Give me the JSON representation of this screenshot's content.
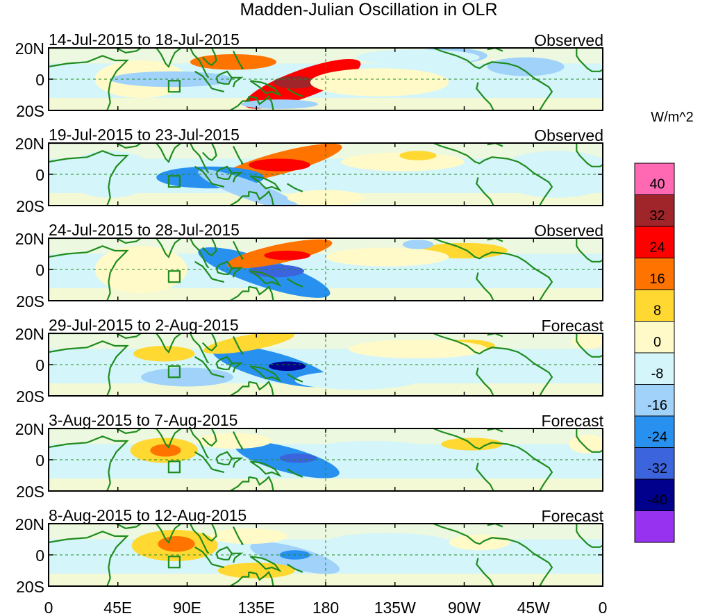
{
  "chart_data": {
    "type": "heatmap",
    "title": "Madden-Julian Oscillation in OLR",
    "units": "W/m^2",
    "lat_tick_labels": [
      "20N",
      "0",
      "20S"
    ],
    "lon_tick_labels": [
      "0",
      "45E",
      "90E",
      "135E",
      "180",
      "135W",
      "90W",
      "45W",
      "0"
    ],
    "lon_range": [
      0,
      360
    ],
    "lat_range": [
      -20,
      20
    ],
    "colorbar": {
      "levels": [
        40,
        32,
        24,
        16,
        8,
        0,
        -8,
        -16,
        -24,
        -32,
        -40
      ],
      "colors": [
        "#ff69b4",
        "#a0252a",
        "#ff0000",
        "#ff7300",
        "#ffd832",
        "#fffac8",
        "#d4f5fa",
        "#a0d2fa",
        "#2891f0",
        "#3c64dc",
        "#00008c",
        "#9632f0"
      ]
    },
    "panels": [
      {
        "period": "14-Jul-2015 to 18-Jul-2015",
        "kind": "Observed",
        "anomalies": [
          {
            "lon": 165,
            "lat": -3,
            "rlon": 40,
            "rlat": 9,
            "tilt": -20,
            "value": 28
          },
          {
            "lon": 120,
            "lat": 11,
            "rlon": 28,
            "rlat": 5,
            "value": 24
          },
          {
            "lon": 160,
            "lat": -2,
            "rlon": 14,
            "rlat": 4,
            "value": 36
          },
          {
            "lon": 215,
            "lat": -2,
            "rlon": 45,
            "rlat": 9,
            "value": 5
          },
          {
            "lon": 60,
            "lat": 0,
            "rlon": 30,
            "rlat": 12,
            "value": 4
          },
          {
            "lon": 80,
            "lat": 0,
            "rlon": 40,
            "rlat": 5,
            "value": -12
          },
          {
            "lon": 260,
            "lat": 15,
            "rlon": 25,
            "rlat": 5,
            "value": -14
          },
          {
            "lon": 310,
            "lat": 8,
            "rlon": 25,
            "rlat": 6,
            "value": -10
          },
          {
            "lon": 150,
            "lat": -16,
            "rlon": 25,
            "rlat": 3,
            "value": -8
          },
          {
            "lon": 240,
            "lat": 14,
            "rlon": 40,
            "rlat": 5,
            "value": -6
          }
        ]
      },
      {
        "period": "19-Jul-2015 to 23-Jul-2015",
        "kind": "Observed",
        "anomalies": [
          {
            "lon": 150,
            "lat": 7,
            "rlon": 42,
            "rlat": 7,
            "tilt": -15,
            "value": 22
          },
          {
            "lon": 150,
            "lat": 6,
            "rlon": 20,
            "rlat": 4,
            "value": 28
          },
          {
            "lon": 105,
            "lat": -2,
            "rlon": 35,
            "rlat": 7,
            "value": -20
          },
          {
            "lon": 130,
            "lat": -10,
            "rlon": 35,
            "rlat": 6,
            "tilt": 20,
            "value": -12
          },
          {
            "lon": 40,
            "lat": 0,
            "rlon": 30,
            "rlat": 15,
            "value": -6
          },
          {
            "lon": 180,
            "lat": -15,
            "rlon": 25,
            "rlat": 5,
            "value": 5
          },
          {
            "lon": 230,
            "lat": 8,
            "rlon": 40,
            "rlat": 6,
            "value": 5
          },
          {
            "lon": 240,
            "lat": 12,
            "rlon": 12,
            "rlat": 3,
            "value": 10
          },
          {
            "lon": 330,
            "lat": 0,
            "rlon": 40,
            "rlat": 15,
            "value": -4
          }
        ]
      },
      {
        "period": "24-Jul-2015 to 28-Jul-2015",
        "kind": "Observed",
        "anomalies": [
          {
            "lon": 140,
            "lat": -2,
            "rlon": 45,
            "rlat": 9,
            "tilt": 18,
            "value": -20
          },
          {
            "lon": 148,
            "lat": -1,
            "rlon": 18,
            "rlat": 4,
            "value": -30
          },
          {
            "lon": 150,
            "lat": 10,
            "rlon": 35,
            "rlat": 6,
            "tilt": -12,
            "value": 18
          },
          {
            "lon": 155,
            "lat": 9,
            "rlon": 15,
            "rlat": 3,
            "value": 26
          },
          {
            "lon": 270,
            "lat": 12,
            "rlon": 28,
            "rlat": 5,
            "value": 9
          },
          {
            "lon": 220,
            "lat": 8,
            "rlon": 40,
            "rlat": 6,
            "value": 3
          },
          {
            "lon": 60,
            "lat": 0,
            "rlon": 30,
            "rlat": 15,
            "value": 4
          },
          {
            "lon": 240,
            "lat": 16,
            "rlon": 10,
            "rlat": 3,
            "value": -10
          }
        ]
      },
      {
        "period": "29-Jul-2015 to 2-Aug-2015",
        "kind": "Forecast",
        "anomalies": [
          {
            "lon": 145,
            "lat": -1,
            "rlon": 40,
            "rlat": 9,
            "tilt": 15,
            "value": -22
          },
          {
            "lon": 155,
            "lat": -1,
            "rlon": 12,
            "rlat": 3,
            "value": -36
          },
          {
            "lon": 130,
            "lat": 14,
            "rlon": 30,
            "rlat": 5,
            "tilt": -10,
            "value": 10
          },
          {
            "lon": 75,
            "lat": 7,
            "rlon": 20,
            "rlat": 5,
            "value": 10
          },
          {
            "lon": 272,
            "lat": 12,
            "rlon": 18,
            "rlat": 4,
            "value": 12
          },
          {
            "lon": 90,
            "lat": -8,
            "rlon": 30,
            "rlat": 6,
            "value": -8
          },
          {
            "lon": 240,
            "lat": 10,
            "rlon": 45,
            "rlat": 6,
            "value": 3
          },
          {
            "lon": 350,
            "lat": 15,
            "rlon": 10,
            "rlat": 5,
            "value": 8
          },
          {
            "lon": 200,
            "lat": -10,
            "rlon": 40,
            "rlat": 6,
            "value": -4
          }
        ]
      },
      {
        "period": "3-Aug-2015 to 7-Aug-2015",
        "kind": "Forecast",
        "anomalies": [
          {
            "lon": 75,
            "lat": 6,
            "rlon": 22,
            "rlat": 8,
            "value": 14
          },
          {
            "lon": 76,
            "lat": 6,
            "rlon": 10,
            "rlat": 4,
            "value": 20
          },
          {
            "lon": 155,
            "lat": 0,
            "rlon": 35,
            "rlat": 8,
            "tilt": 15,
            "value": -18
          },
          {
            "lon": 162,
            "lat": 1,
            "rlon": 12,
            "rlat": 3,
            "value": -30
          },
          {
            "lon": 275,
            "lat": 10,
            "rlon": 20,
            "rlat": 4,
            "value": 9
          },
          {
            "lon": 120,
            "lat": 12,
            "rlon": 25,
            "rlat": 5,
            "value": 4
          },
          {
            "lon": 210,
            "lat": 6,
            "rlon": 40,
            "rlat": 6,
            "value": -5
          },
          {
            "lon": 350,
            "lat": 10,
            "rlon": 12,
            "rlat": 6,
            "value": 5
          }
        ]
      },
      {
        "period": "8-Aug-2015 to 12-Aug-2015",
        "kind": "Forecast",
        "anomalies": [
          {
            "lon": 82,
            "lat": 6,
            "rlon": 28,
            "rlat": 10,
            "value": 15
          },
          {
            "lon": 83,
            "lat": 7,
            "rlon": 12,
            "rlat": 5,
            "value": 22
          },
          {
            "lon": 160,
            "lat": -2,
            "rlon": 30,
            "rlat": 7,
            "tilt": 15,
            "value": -12
          },
          {
            "lon": 160,
            "lat": 0,
            "rlon": 10,
            "rlat": 3,
            "value": -20
          },
          {
            "lon": 135,
            "lat": -10,
            "rlon": 25,
            "rlat": 5,
            "value": 10
          },
          {
            "lon": 130,
            "lat": 12,
            "rlon": 25,
            "rlat": 5,
            "value": 6
          },
          {
            "lon": 280,
            "lat": 8,
            "rlon": 20,
            "rlat": 5,
            "value": 5
          },
          {
            "lon": 220,
            "lat": 8,
            "rlon": 40,
            "rlat": 6,
            "value": -5
          }
        ]
      }
    ]
  }
}
